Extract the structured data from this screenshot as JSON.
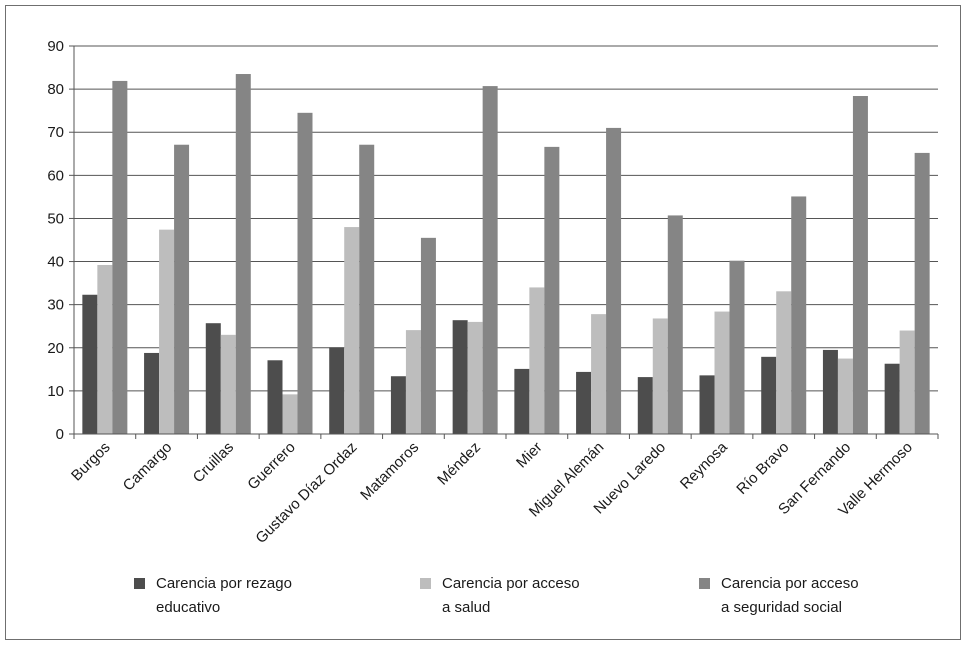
{
  "chart_data": {
    "type": "bar",
    "categories": [
      "Burgos",
      "Camargo",
      "Cruillas",
      "Guerrero",
      "Gustavo Díaz Ordaz",
      "Matamoros",
      "Méndez",
      "Mier",
      "Miguel Alemán",
      "Nuevo Laredo",
      "Reynosa",
      "Río Bravo",
      "San Fernando",
      "Valle Hermoso"
    ],
    "series": [
      {
        "name": "Carencia por rezago educativo",
        "legend_lines": [
          "Carencia por rezago",
          "educativo"
        ],
        "color": "#4d4d4d",
        "values": [
          32.3,
          18.8,
          25.7,
          17.1,
          20.1,
          13.4,
          26.4,
          15.1,
          14.4,
          13.2,
          13.6,
          17.9,
          19.5,
          16.3
        ]
      },
      {
        "name": "Carencia por acceso a salud",
        "legend_lines": [
          "Carencia por acceso",
          "a salud"
        ],
        "color": "#bdbdbd",
        "values": [
          39.2,
          47.4,
          23.0,
          9.2,
          48.0,
          24.1,
          26.0,
          34.0,
          27.8,
          26.8,
          28.4,
          33.1,
          17.5,
          24.0
        ]
      },
      {
        "name": "Carencia por acceso a seguridad social",
        "legend_lines": [
          "Carencia por acceso",
          "a seguridad social"
        ],
        "color": "#858585",
        "values": [
          81.9,
          67.1,
          83.5,
          74.5,
          67.1,
          45.5,
          80.7,
          66.6,
          71.0,
          50.7,
          40.2,
          55.1,
          78.4,
          65.2
        ]
      }
    ],
    "yticks": [
      0,
      10,
      20,
      30,
      40,
      50,
      60,
      70,
      80,
      90
    ],
    "ylim": [
      0,
      90
    ],
    "grid": true,
    "legend_position": "bottom"
  }
}
